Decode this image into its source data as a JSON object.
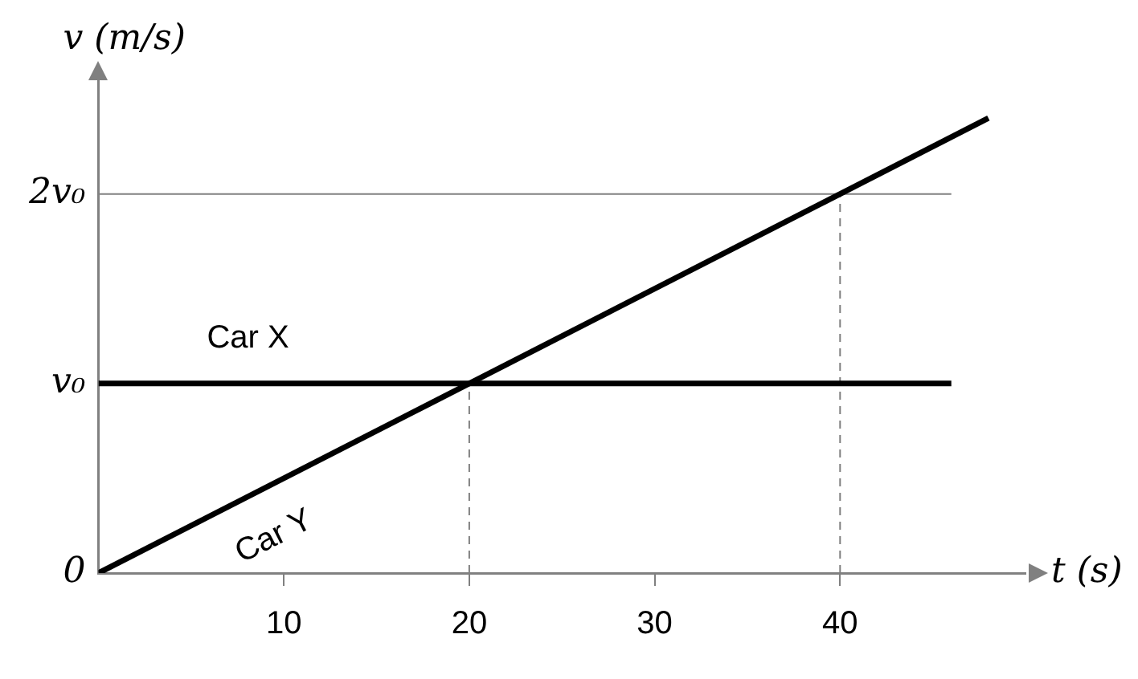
{
  "chart_data": {
    "type": "line",
    "xlabel": "t (s)",
    "ylabel": "v (m/s)",
    "series": [
      {
        "name": "Car X",
        "color": "#000000",
        "x": [
          0,
          46
        ],
        "values": [
          1,
          1
        ]
      },
      {
        "name": "Car Y",
        "color": "#000000",
        "x": [
          0,
          48
        ],
        "values": [
          0,
          2.4
        ]
      }
    ],
    "xlim": [
      0,
      50
    ],
    "xticks": [
      10,
      20,
      30,
      40
    ],
    "ylim": [
      0,
      2.6
    ],
    "yticks": [
      {
        "value": 0,
        "label": "0"
      },
      {
        "value": 1,
        "label": "v₀"
      },
      {
        "value": 2,
        "label": "2v₀"
      }
    ],
    "ref_lines": [
      {
        "axis": "x",
        "value": 20,
        "color": "#808080",
        "line_style": "dashed"
      },
      {
        "axis": "x",
        "value": 40,
        "color": "#808080",
        "line_style": "dashed"
      },
      {
        "axis": "y",
        "value": 2,
        "color": "#808080",
        "line_style": "solid"
      }
    ],
    "grid": false,
    "legend": false,
    "marker": "none",
    "line_style": "solid"
  }
}
